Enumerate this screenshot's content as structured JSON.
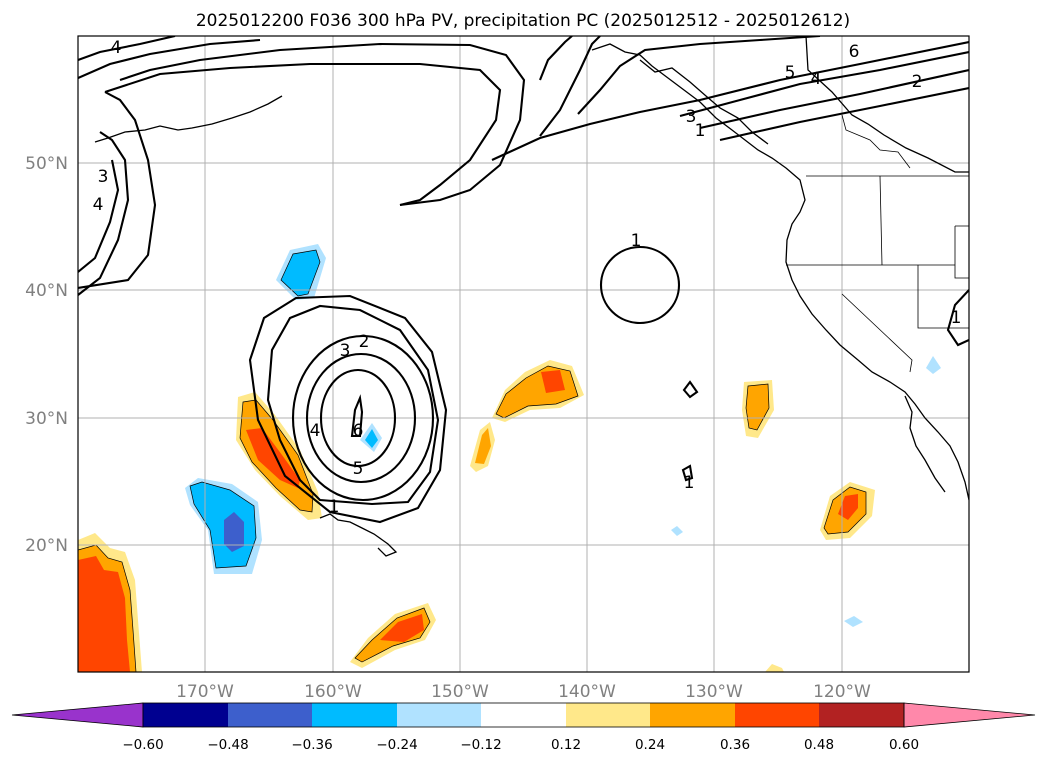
{
  "title": "2025012200 F036 300 hPa PV, precipitation PC (2025012512 - 2025012612)",
  "lat_labels": [
    "50°N",
    "40°N",
    "30°N",
    "20°N"
  ],
  "lon_labels": [
    "170°W",
    "160°W",
    "150°W",
    "140°W",
    "130°W",
    "120°W"
  ],
  "map_extent": {
    "lon": [
      -180,
      -110
    ],
    "lat": [
      10,
      60
    ]
  },
  "pv_contour_labels": [
    "4",
    "3",
    "3",
    "4",
    "6",
    "5",
    "4",
    "2",
    "1",
    "1",
    "2",
    "3",
    "4",
    "6",
    "5",
    "1",
    "1",
    "1"
  ],
  "colorbar": {
    "ticks": [
      "−0.60",
      "−0.48",
      "−0.36",
      "−0.24",
      "−0.12",
      "0.12",
      "0.24",
      "0.36",
      "0.48",
      "0.60"
    ],
    "colors": {
      "under": "#9933cc",
      "bins": [
        "#000090",
        "#3d5fcc",
        "#00bbff",
        "#b0e2ff",
        "#ffffff",
        "#ffe88a",
        "#ffa500",
        "#ff4500",
        "#b22222"
      ],
      "over": "#ff88aa"
    }
  }
}
